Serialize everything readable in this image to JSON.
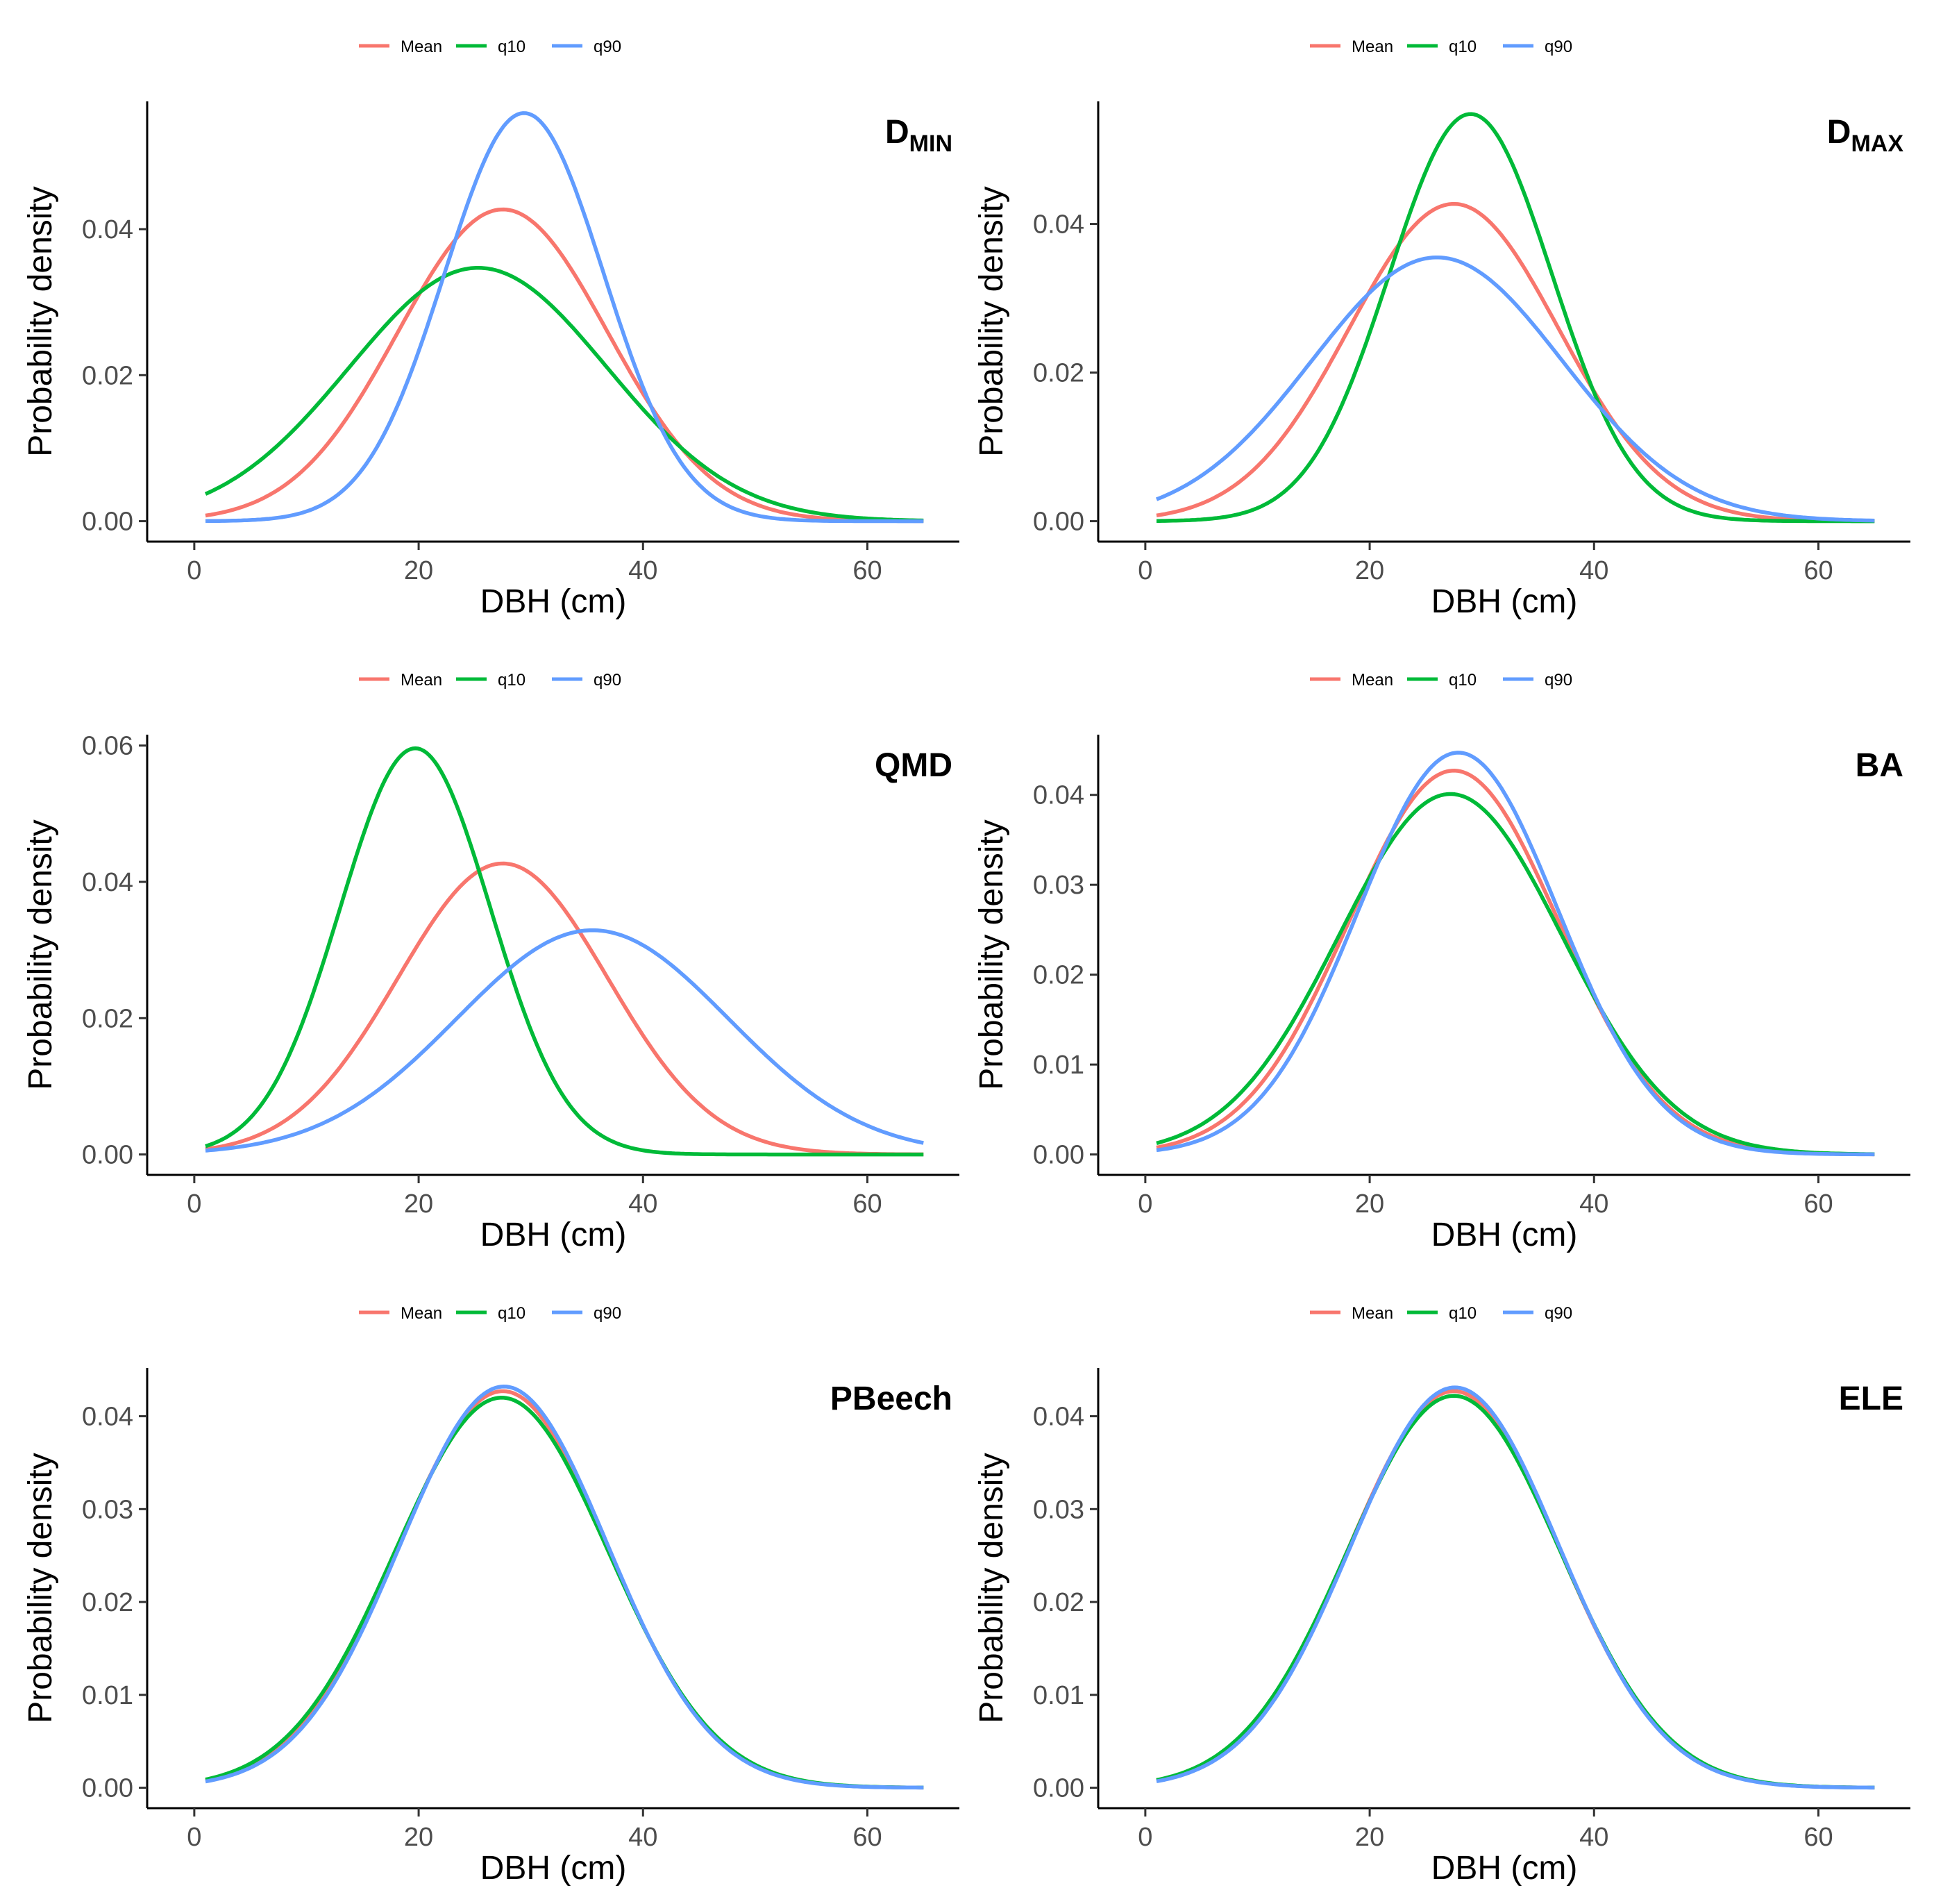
{
  "figure": {
    "series_colors": {
      "Mean": "#F8766D",
      "q10": "#00BA38",
      "q90": "#619CFF"
    }
  },
  "chart_data": [
    {
      "type": "line",
      "panel": "D_MIN",
      "title": "D",
      "title_sub": "MIN",
      "xlabel": "DBH (cm)",
      "ylabel": "Probability density",
      "xlim": [
        1,
        65
      ],
      "ylim": [
        0,
        0.056
      ],
      "x_ticks": [
        "0",
        "20",
        "40",
        "60"
      ],
      "y_ticks": [
        "0.00",
        "0.02",
        "0.04"
      ],
      "legend": [
        "Mean",
        "q10",
        "q90"
      ],
      "series": [
        {
          "name": "Mean",
          "color": "#F8766D",
          "mean": 27.5,
          "sd": 9.35,
          "peak": 0.0427
        },
        {
          "name": "q10",
          "color": "#00BA38",
          "mean": 25.3,
          "sd": 11.5,
          "peak": 0.0347
        },
        {
          "name": "q90",
          "color": "#619CFF",
          "mean": 29.4,
          "sd": 7.1,
          "peak": 0.0559
        }
      ]
    },
    {
      "type": "line",
      "panel": "D_MAX",
      "title": "D",
      "title_sub": "MAX",
      "xlabel": "DBH (cm)",
      "ylabel": "Probability density",
      "xlim": [
        1,
        65
      ],
      "ylim": [
        0,
        0.055
      ],
      "x_ticks": [
        "0",
        "20",
        "40",
        "60"
      ],
      "y_ticks": [
        "0.00",
        "0.02",
        "0.04"
      ],
      "legend": [
        "Mean",
        "q10",
        "q90"
      ],
      "series": [
        {
          "name": "Mean",
          "color": "#F8766D",
          "mean": 27.5,
          "sd": 9.35,
          "peak": 0.0427
        },
        {
          "name": "q10",
          "color": "#00BA38",
          "mean": 29.0,
          "sd": 7.25,
          "peak": 0.0548
        },
        {
          "name": "q90",
          "color": "#619CFF",
          "mean": 26.0,
          "sd": 11.2,
          "peak": 0.0355
        }
      ]
    },
    {
      "type": "line",
      "panel": "QMD",
      "title": "QMD",
      "title_sub": "",
      "xlabel": "DBH (cm)",
      "ylabel": "Probability density",
      "xlim": [
        1,
        65
      ],
      "ylim": [
        0,
        0.06
      ],
      "x_ticks": [
        "0",
        "20",
        "40",
        "60"
      ],
      "y_ticks": [
        "0.00",
        "0.02",
        "0.04",
        "0.06"
      ],
      "legend": [
        "Mean",
        "q10",
        "q90"
      ],
      "series": [
        {
          "name": "Mean",
          "color": "#F8766D",
          "mean": 27.5,
          "sd": 9.35,
          "peak": 0.0427
        },
        {
          "name": "q10",
          "color": "#00BA38",
          "mean": 19.7,
          "sd": 6.7,
          "peak": 0.0596
        },
        {
          "name": "q90",
          "color": "#619CFF",
          "mean": 35.5,
          "sd": 12.1,
          "peak": 0.0329
        }
      ]
    },
    {
      "type": "line",
      "panel": "BA",
      "title": "BA",
      "title_sub": "",
      "xlabel": "DBH (cm)",
      "ylabel": "Probability density",
      "xlim": [
        1,
        65
      ],
      "ylim": [
        0,
        0.0447
      ],
      "x_ticks": [
        "0",
        "20",
        "40",
        "60"
      ],
      "y_ticks": [
        "0.00",
        "0.01",
        "0.02",
        "0.03",
        "0.04"
      ],
      "legend": [
        "Mean",
        "q10",
        "q90"
      ],
      "series": [
        {
          "name": "Mean",
          "color": "#F8766D",
          "mean": 27.5,
          "sd": 9.35,
          "peak": 0.0427
        },
        {
          "name": "q10",
          "color": "#00BA38",
          "mean": 27.2,
          "sd": 9.95,
          "peak": 0.0401
        },
        {
          "name": "q90",
          "color": "#619CFF",
          "mean": 27.9,
          "sd": 8.92,
          "peak": 0.0447
        }
      ]
    },
    {
      "type": "line",
      "panel": "PBeech",
      "title": "PBeech",
      "title_sub": "",
      "xlabel": "DBH (cm)",
      "ylabel": "Probability density",
      "xlim": [
        1,
        65
      ],
      "ylim": [
        0,
        0.0432
      ],
      "x_ticks": [
        "0",
        "20",
        "40",
        "60"
      ],
      "y_ticks": [
        "0.00",
        "0.01",
        "0.02",
        "0.03",
        "0.04"
      ],
      "legend": [
        "Mean",
        "q10",
        "q90"
      ],
      "series": [
        {
          "name": "Mean",
          "color": "#F8766D",
          "mean": 27.5,
          "sd": 9.35,
          "peak": 0.0427
        },
        {
          "name": "q10",
          "color": "#00BA38",
          "mean": 27.4,
          "sd": 9.5,
          "peak": 0.042
        },
        {
          "name": "q90",
          "color": "#619CFF",
          "mean": 27.6,
          "sd": 9.23,
          "peak": 0.0432
        }
      ]
    },
    {
      "type": "line",
      "panel": "ELE",
      "title": "ELE",
      "title_sub": "",
      "xlabel": "DBH (cm)",
      "ylabel": "Probability density",
      "xlim": [
        1,
        65
      ],
      "ylim": [
        0,
        0.0432
      ],
      "x_ticks": [
        "0",
        "20",
        "40",
        "60"
      ],
      "y_ticks": [
        "0.00",
        "0.01",
        "0.02",
        "0.03",
        "0.04"
      ],
      "legend": [
        "Mean",
        "q10",
        "q90"
      ],
      "series": [
        {
          "name": "Mean",
          "color": "#F8766D",
          "mean": 27.5,
          "sd": 9.35,
          "peak": 0.0427
        },
        {
          "name": "q10",
          "color": "#00BA38",
          "mean": 27.5,
          "sd": 9.45,
          "peak": 0.0422
        },
        {
          "name": "q90",
          "color": "#619CFF",
          "mean": 27.6,
          "sd": 9.25,
          "peak": 0.0431
        }
      ]
    }
  ]
}
